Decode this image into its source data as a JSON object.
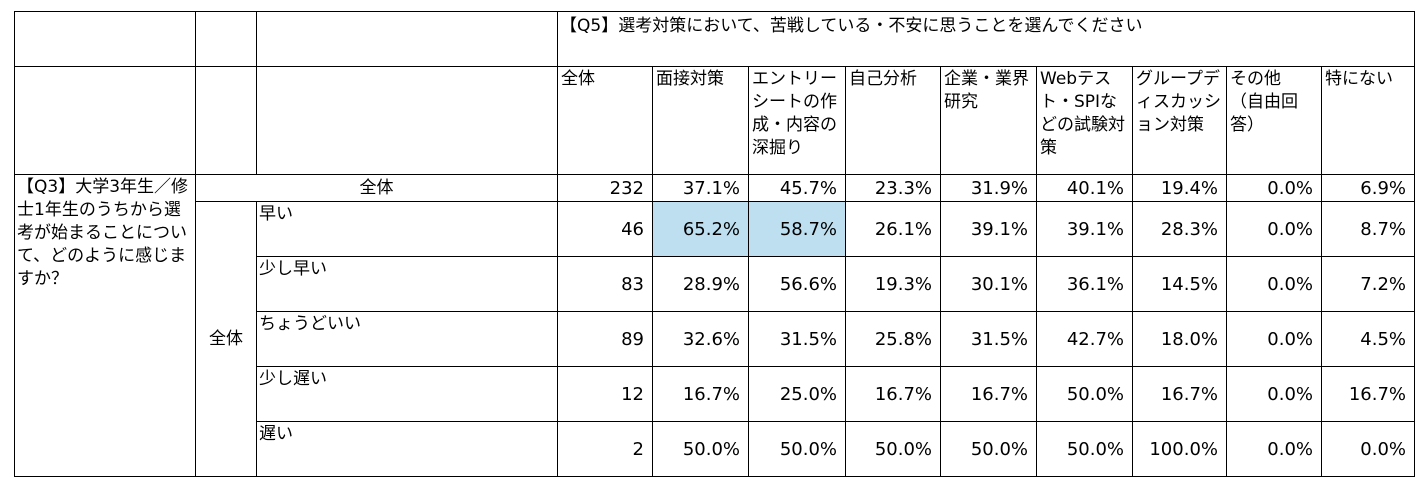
{
  "question_header": "【Q5】選考対策において、苦戦している・不安に思うことを選んでください",
  "columns": [
    "全体",
    "面接対策",
    "エントリーシートの作成・内容の深掘り",
    "自己分析",
    "企業・業界研究",
    "Webテスト・SPIなどの試験対策",
    "グループディスカッション対策",
    "その他　（自由回答）",
    "特にない"
  ],
  "row_question": "【Q3】大学3年生／修士1年生のうちから選考が始まることについて、どのように感じますか？",
  "total_row": {
    "label": "全体",
    "values": [
      "232",
      "37.1%",
      "45.7%",
      "23.3%",
      "31.9%",
      "40.1%",
      "19.4%",
      "0.0%",
      "6.9%"
    ]
  },
  "group_label": "全体",
  "rows": [
    {
      "label": "早い",
      "values": [
        "46",
        "65.2%",
        "58.7%",
        "26.1%",
        "39.1%",
        "39.1%",
        "28.3%",
        "0.0%",
        "8.7%"
      ],
      "highlight": [
        1,
        2
      ]
    },
    {
      "label": "少し早い",
      "values": [
        "83",
        "28.9%",
        "56.6%",
        "19.3%",
        "30.1%",
        "36.1%",
        "14.5%",
        "0.0%",
        "7.2%"
      ],
      "highlight": []
    },
    {
      "label": "ちょうどいい",
      "values": [
        "89",
        "32.6%",
        "31.5%",
        "25.8%",
        "31.5%",
        "42.7%",
        "18.0%",
        "0.0%",
        "4.5%"
      ],
      "highlight": []
    },
    {
      "label": "少し遅い",
      "values": [
        "12",
        "16.7%",
        "25.0%",
        "16.7%",
        "16.7%",
        "50.0%",
        "16.7%",
        "0.0%",
        "16.7%"
      ],
      "highlight": []
    },
    {
      "label": "遅い",
      "values": [
        "2",
        "50.0%",
        "50.0%",
        "50.0%",
        "50.0%",
        "50.0%",
        "100.0%",
        "0.0%",
        "0.0%"
      ],
      "highlight": []
    }
  ],
  "colors": {
    "highlight": "#bddff0",
    "border": "#000000"
  }
}
